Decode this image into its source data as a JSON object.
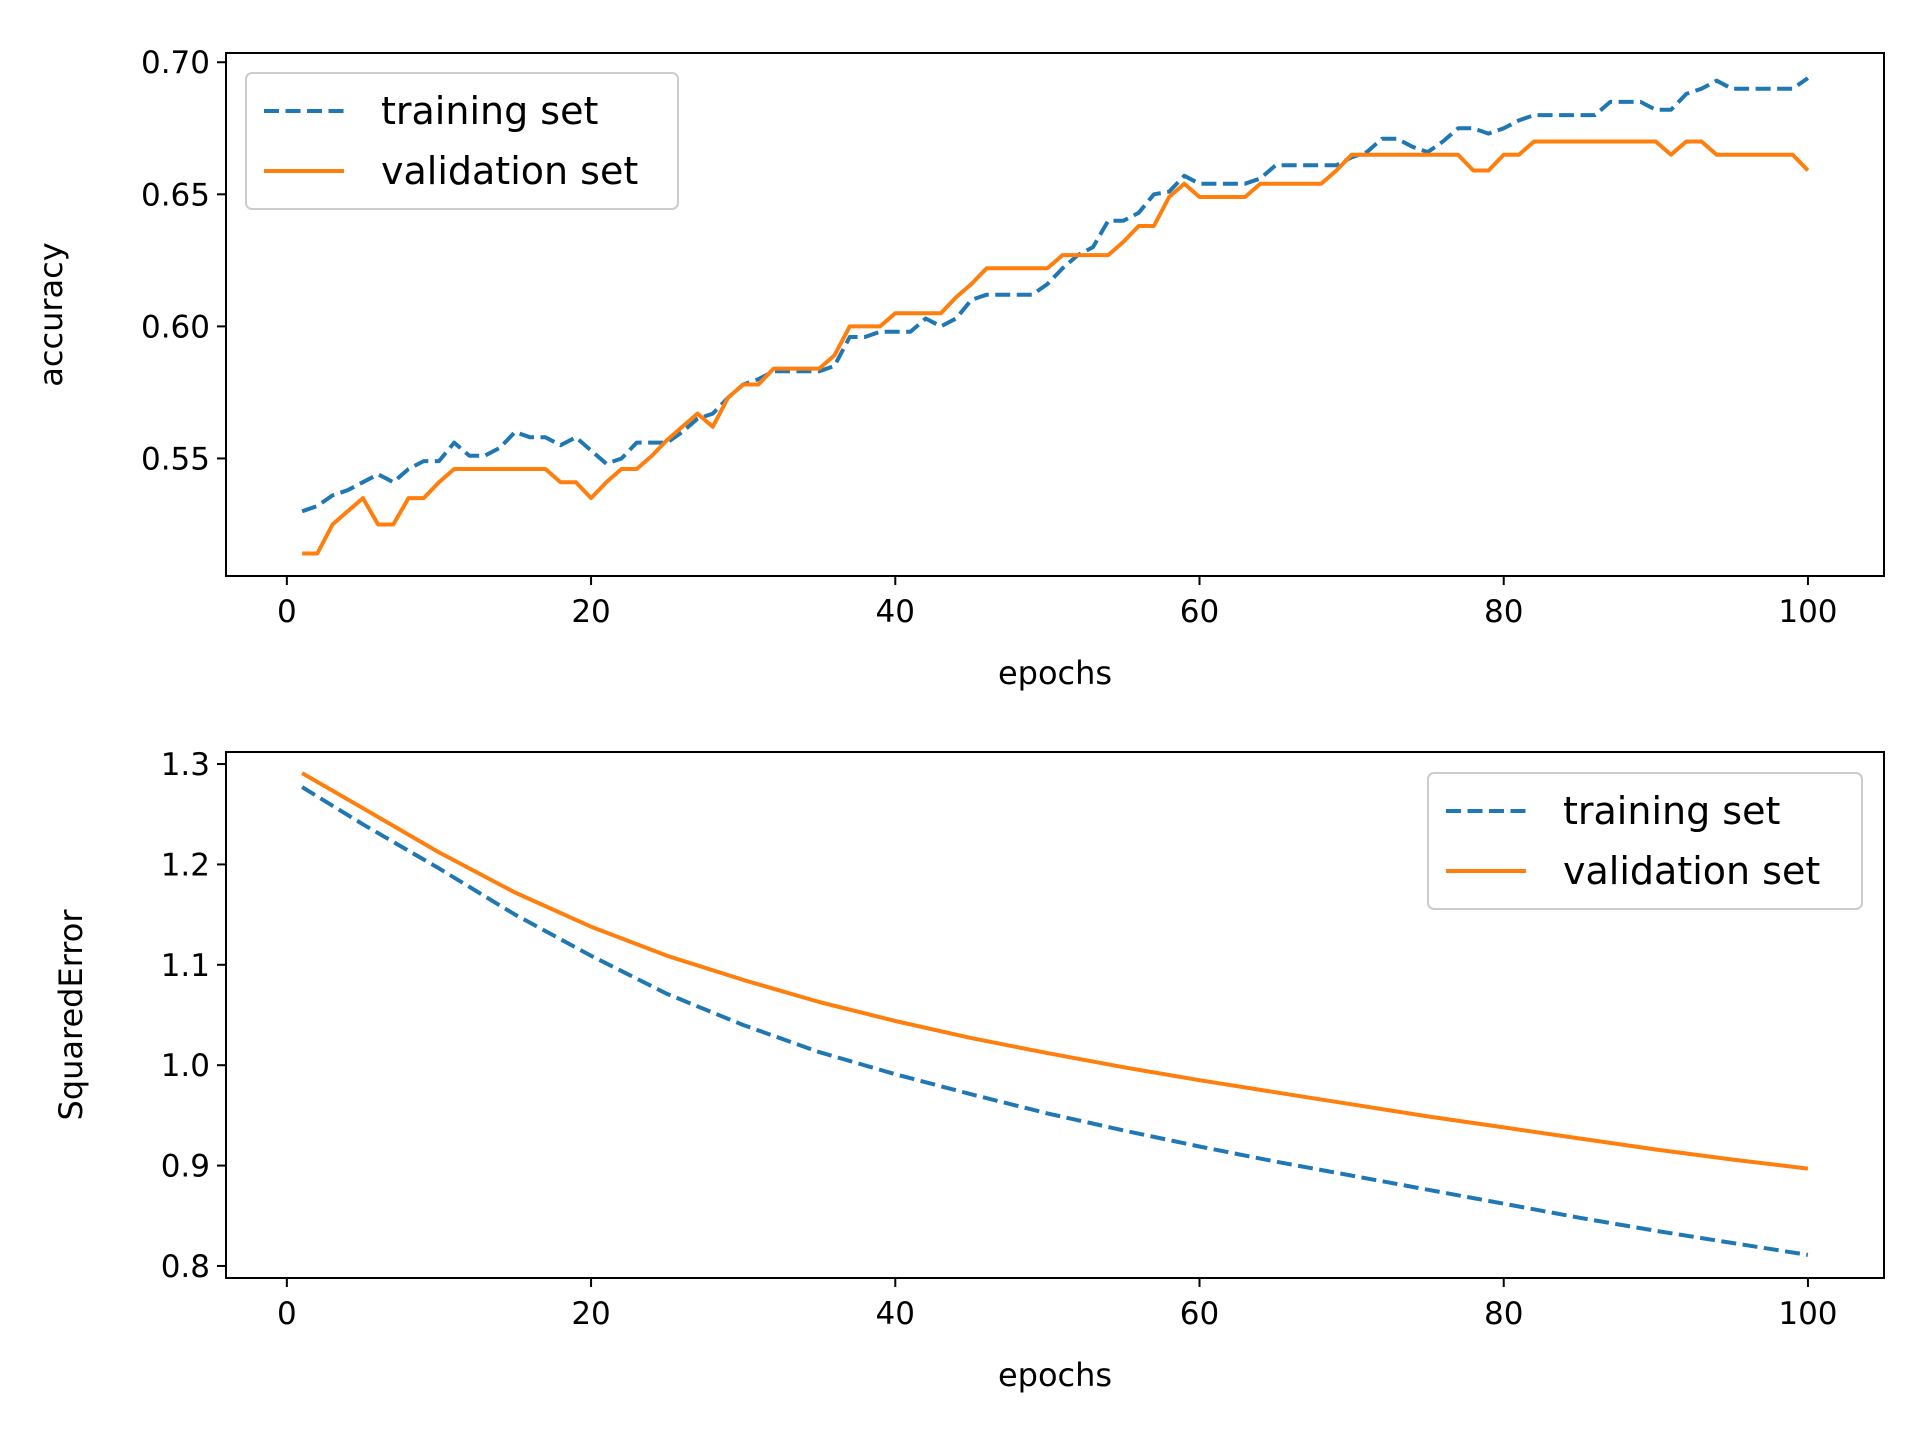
{
  "figure": {
    "colors": {
      "training": "#1f77b4",
      "validation": "#ff7f0e"
    }
  },
  "chart_data": [
    {
      "type": "line",
      "title": "",
      "xlabel": "epochs",
      "ylabel": "accuracy",
      "xlim": [
        -4,
        105
      ],
      "ylim": [
        0.5055,
        0.7035
      ],
      "xticks": [
        "0",
        "20",
        "40",
        "60",
        "80",
        "100"
      ],
      "yticks": [
        "0.55",
        "0.60",
        "0.65",
        "0.70"
      ],
      "grid": false,
      "legend_position": "top-left",
      "series": [
        {
          "name": "training set",
          "style": "dashed",
          "color": "#1f77b4",
          "x": [
            1,
            2,
            3,
            4,
            5,
            6,
            7,
            8,
            9,
            10,
            11,
            12,
            13,
            14,
            15,
            16,
            17,
            18,
            19,
            20,
            21,
            22,
            23,
            24,
            25,
            26,
            27,
            28,
            29,
            30,
            31,
            32,
            33,
            34,
            35,
            36,
            37,
            38,
            39,
            40,
            41,
            42,
            43,
            44,
            45,
            46,
            47,
            48,
            49,
            50,
            51,
            52,
            53,
            54,
            55,
            56,
            57,
            58,
            59,
            60,
            61,
            62,
            63,
            64,
            65,
            66,
            67,
            68,
            69,
            70,
            71,
            72,
            73,
            74,
            75,
            76,
            77,
            78,
            79,
            80,
            81,
            82,
            83,
            84,
            85,
            86,
            87,
            88,
            89,
            90,
            91,
            92,
            93,
            94,
            95,
            96,
            97,
            98,
            99,
            100
          ],
          "y": [
            0.53,
            0.532,
            0.536,
            0.538,
            0.541,
            0.544,
            0.541,
            0.546,
            0.549,
            0.549,
            0.556,
            0.551,
            0.551,
            0.554,
            0.56,
            0.558,
            0.558,
            0.555,
            0.558,
            0.553,
            0.548,
            0.55,
            0.556,
            0.556,
            0.556,
            0.56,
            0.565,
            0.567,
            0.573,
            0.578,
            0.58,
            0.583,
            0.583,
            0.583,
            0.583,
            0.585,
            0.596,
            0.596,
            0.598,
            0.598,
            0.598,
            0.603,
            0.6,
            0.603,
            0.61,
            0.612,
            0.612,
            0.612,
            0.612,
            0.616,
            0.622,
            0.627,
            0.63,
            0.64,
            0.64,
            0.643,
            0.65,
            0.651,
            0.657,
            0.654,
            0.654,
            0.654,
            0.654,
            0.656,
            0.661,
            0.661,
            0.661,
            0.661,
            0.661,
            0.664,
            0.666,
            0.671,
            0.671,
            0.668,
            0.666,
            0.67,
            0.675,
            0.675,
            0.673,
            0.675,
            0.678,
            0.68,
            0.68,
            0.68,
            0.68,
            0.68,
            0.685,
            0.685,
            0.685,
            0.682,
            0.682,
            0.688,
            0.69,
            0.693,
            0.69,
            0.69,
            0.69,
            0.69,
            0.69,
            0.694
          ]
        },
        {
          "name": "validation set",
          "style": "solid",
          "color": "#ff7f0e",
          "x": [
            1,
            2,
            3,
            4,
            5,
            6,
            7,
            8,
            9,
            10,
            11,
            12,
            13,
            14,
            15,
            16,
            17,
            18,
            19,
            20,
            21,
            22,
            23,
            24,
            25,
            26,
            27,
            28,
            29,
            30,
            31,
            32,
            33,
            34,
            35,
            36,
            37,
            38,
            39,
            40,
            41,
            42,
            43,
            44,
            45,
            46,
            47,
            48,
            49,
            50,
            51,
            52,
            53,
            54,
            55,
            56,
            57,
            58,
            59,
            60,
            61,
            62,
            63,
            64,
            65,
            66,
            67,
            68,
            69,
            70,
            71,
            72,
            73,
            74,
            75,
            76,
            77,
            78,
            79,
            80,
            81,
            82,
            83,
            84,
            85,
            86,
            87,
            88,
            89,
            90,
            91,
            92,
            93,
            94,
            95,
            96,
            97,
            98,
            99,
            100
          ],
          "y": [
            0.514,
            0.514,
            0.525,
            0.53,
            0.535,
            0.525,
            0.525,
            0.535,
            0.535,
            0.541,
            0.546,
            0.546,
            0.546,
            0.546,
            0.546,
            0.546,
            0.546,
            0.541,
            0.541,
            0.535,
            0.541,
            0.546,
            0.546,
            0.551,
            0.557,
            0.562,
            0.567,
            0.562,
            0.573,
            0.578,
            0.578,
            0.584,
            0.584,
            0.584,
            0.584,
            0.589,
            0.6,
            0.6,
            0.6,
            0.605,
            0.605,
            0.605,
            0.605,
            0.611,
            0.616,
            0.622,
            0.622,
            0.622,
            0.622,
            0.622,
            0.627,
            0.627,
            0.627,
            0.627,
            0.632,
            0.638,
            0.638,
            0.649,
            0.654,
            0.649,
            0.649,
            0.649,
            0.649,
            0.654,
            0.654,
            0.654,
            0.654,
            0.654,
            0.659,
            0.665,
            0.665,
            0.665,
            0.665,
            0.665,
            0.665,
            0.665,
            0.665,
            0.659,
            0.659,
            0.665,
            0.665,
            0.67,
            0.67,
            0.67,
            0.67,
            0.67,
            0.67,
            0.67,
            0.67,
            0.67,
            0.665,
            0.67,
            0.67,
            0.665,
            0.665,
            0.665,
            0.665,
            0.665,
            0.665,
            0.659
          ]
        }
      ]
    },
    {
      "type": "line",
      "title": "",
      "xlabel": "epochs",
      "ylabel": "SquaredError",
      "xlim": [
        -4,
        105
      ],
      "ylim": [
        0.788,
        1.312
      ],
      "xticks": [
        "0",
        "20",
        "40",
        "60",
        "80",
        "100"
      ],
      "yticks": [
        "0.8",
        "0.9",
        "1.0",
        "1.1",
        "1.2",
        "1.3"
      ],
      "grid": false,
      "legend_position": "top-right",
      "series": [
        {
          "name": "training set",
          "style": "dashed",
          "color": "#1f77b4",
          "x": [
            1,
            5,
            10,
            15,
            20,
            25,
            30,
            35,
            40,
            45,
            50,
            55,
            60,
            65,
            70,
            75,
            80,
            85,
            90,
            95,
            100
          ],
          "y": [
            1.277,
            1.24,
            1.196,
            1.15,
            1.109,
            1.071,
            1.04,
            1.013,
            0.991,
            0.971,
            0.952,
            0.935,
            0.919,
            0.904,
            0.89,
            0.876,
            0.862,
            0.848,
            0.835,
            0.823,
            0.811
          ]
        },
        {
          "name": "validation set",
          "style": "solid",
          "color": "#ff7f0e",
          "x": [
            1,
            5,
            10,
            15,
            20,
            25,
            30,
            35,
            40,
            45,
            50,
            55,
            60,
            65,
            70,
            75,
            80,
            85,
            90,
            95,
            100
          ],
          "y": [
            1.291,
            1.256,
            1.212,
            1.172,
            1.138,
            1.109,
            1.085,
            1.063,
            1.044,
            1.027,
            1.012,
            0.998,
            0.985,
            0.973,
            0.961,
            0.949,
            0.938,
            0.927,
            0.916,
            0.906,
            0.897
          ]
        }
      ]
    }
  ]
}
